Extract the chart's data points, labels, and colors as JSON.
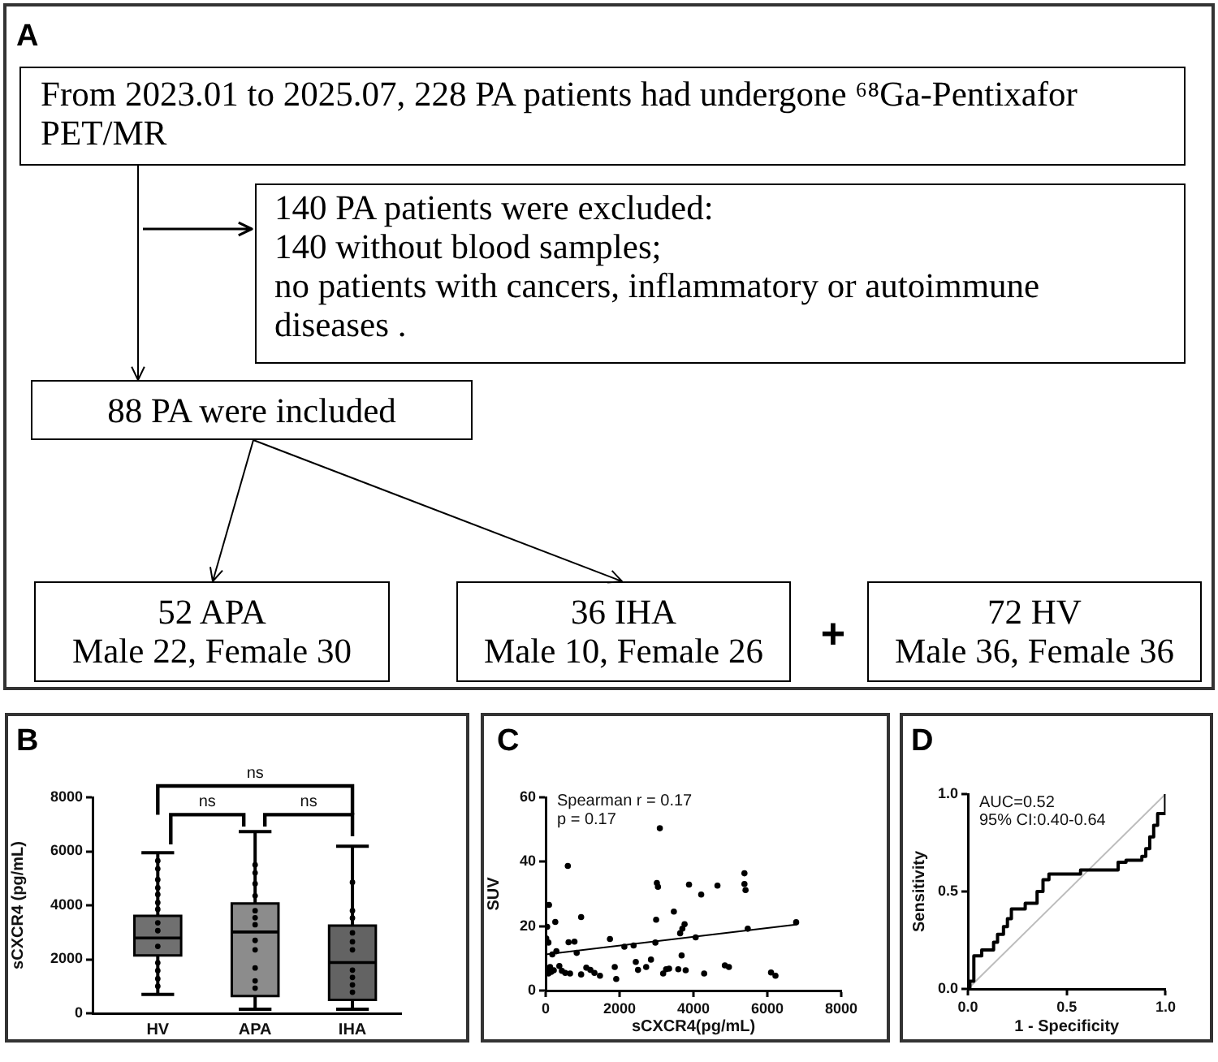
{
  "chart_data": [
    {
      "type": "other",
      "title": "A",
      "annotations": [
        "From 2023.01 to 2025.07, 228 PA patients had undergone ⁶⁸Ga-Pentixafor PET/MR",
        "140 PA patients were excluded:\n140 without blood samples;\nno patients with cancers, inflammatory or autoimmune diseases .",
        "88 PA were included",
        "52 APA\nMale 22, Female 30",
        "36 IHA\nMale 10, Female 26",
        "+",
        "72 HV\nMale 36, Female 36"
      ]
    },
    {
      "type": "box",
      "title": "B",
      "ylabel": "sCXCR4 (pg/mL)",
      "categories": [
        "HV",
        "APA",
        "IHA"
      ],
      "ylim": [
        0,
        8000
      ],
      "yticks": [
        0,
        2000,
        4000,
        6000,
        8000
      ],
      "annotations": [
        "ns",
        "ns",
        "ns"
      ],
      "series": [
        {
          "type": "box",
          "colors": [
            "#707070",
            "#8c8c8c",
            "#636363"
          ],
          "boxes": [
            {
              "low": 700,
              "q1": 2140,
              "median": 2790,
              "q3": 3610,
              "high": 5950
            },
            {
              "low": 150,
              "q1": 640,
              "median": 3010,
              "q3": 4070,
              "high": 6730
            },
            {
              "low": 150,
              "q1": 500,
              "median": 1880,
              "q3": 3250,
              "high": 6190
            }
          ]
        },
        {
          "type": "scatter",
          "marker": "circle",
          "color": "#000000",
          "x": [
            "HV",
            "HV",
            "HV",
            "HV",
            "HV",
            "HV",
            "HV",
            "HV",
            "HV",
            "HV",
            "HV",
            "HV",
            "HV",
            "HV",
            "APA",
            "APA",
            "APA",
            "APA",
            "APA",
            "APA",
            "APA",
            "APA",
            "APA",
            "APA",
            "APA",
            "APA",
            "IHA",
            "IHA",
            "IHA",
            "IHA",
            "IHA",
            "IHA",
            "IHA",
            "IHA",
            "IHA",
            "IHA"
          ],
          "values": [
            5650,
            5350,
            4950,
            4650,
            4400,
            4100,
            3850,
            3350,
            3060,
            2480,
            1870,
            1580,
            1280,
            1000,
            5500,
            5200,
            4800,
            4350,
            3800,
            3540,
            3280,
            2700,
            2350,
            1680,
            1200,
            930,
            4850,
            3800,
            3530,
            2980,
            2650,
            2350,
            1600,
            1330,
            1050,
            780
          ]
        }
      ]
    },
    {
      "type": "scatter",
      "title": "C",
      "xlabel": "sCXCR4(pg/mL)",
      "ylabel": "SUV",
      "xlim": [
        0,
        8000
      ],
      "xticks": [
        0,
        2000,
        4000,
        6000,
        8000
      ],
      "ylim": [
        0,
        60
      ],
      "yticks": [
        0,
        20,
        40,
        60
      ],
      "annotations": [
        "Spearman r = 0.17",
        "p = 0.17"
      ],
      "series": [
        {
          "type": "scatter",
          "marker": "circle",
          "color": "#000000",
          "x": [
            90,
            40,
            15,
            75,
            180,
            290,
            260,
            40,
            120,
            75,
            150,
            220,
            370,
            440,
            530,
            660,
            620,
            780,
            600,
            840,
            960,
            960,
            1100,
            1210,
            1320,
            1470,
            1740,
            1870,
            1910,
            2130,
            2380,
            2440,
            2500,
            2720,
            2850,
            2970,
            2990,
            3010,
            3040,
            3090,
            3180,
            3260,
            3340,
            3470,
            3680,
            3640,
            3700,
            3760,
            3590,
            3790,
            3880,
            4060,
            4210,
            4290,
            4650,
            4850,
            4960,
            5380,
            5380,
            5410,
            5470,
            6100,
            6220,
            6780
          ],
          "values": [
            26.6,
            19.8,
            16.2,
            14.9,
            11.2,
            12.2,
            21.3,
            6.9,
            7.3,
            5.3,
            5.8,
            6.3,
            7.6,
            6.1,
            5.5,
            5.3,
            15.0,
            15.2,
            38.7,
            11.7,
            22.8,
            5.0,
            7.1,
            6.4,
            5.5,
            4.6,
            16.0,
            7.3,
            3.6,
            13.6,
            14.0,
            8.9,
            6.4,
            7.3,
            9.6,
            14.9,
            22.0,
            33.4,
            32.2,
            50.4,
            5.3,
            6.6,
            6.8,
            24.5,
            10.9,
            17.8,
            19.2,
            20.6,
            6.6,
            6.3,
            32.9,
            16.5,
            29.8,
            5.3,
            32.6,
            7.8,
            7.3,
            36.4,
            33.1,
            31.2,
            19.2,
            5.6,
            4.6,
            21.2
          ]
        },
        {
          "type": "line",
          "color": "#000000",
          "x": [
            0,
            6780
          ],
          "values": [
            11.2,
            20.5
          ]
        }
      ]
    },
    {
      "type": "step",
      "title": "D",
      "xlabel": "1 - Specificity",
      "ylabel": "Sensitivity",
      "xlim": [
        0,
        1
      ],
      "ylim": [
        0,
        1
      ],
      "xticks": [
        {
          "value": 0,
          "label": "0.0"
        },
        {
          "value": 0.5,
          "label": "0.5"
        },
        {
          "value": 1,
          "label": "1.0"
        }
      ],
      "yticks": [
        {
          "value": 0,
          "label": "0.0"
        },
        {
          "value": 0.5,
          "label": "0.5"
        },
        {
          "value": 1,
          "label": "1.0"
        }
      ],
      "annotations": [
        "AUC=0.52",
        "95% CI:0.40-0.64"
      ],
      "series": [
        {
          "color": "#000000",
          "x": [
            0,
            0.01,
            0.03,
            0.07,
            0.13,
            0.15,
            0.18,
            0.2,
            0.22,
            0.29,
            0.35,
            0.38,
            0.41,
            0.57,
            0.76,
            0.8,
            0.88,
            0.9,
            0.92,
            0.94,
            0.96,
            1.0
          ],
          "values": [
            0,
            0.04,
            0.17,
            0.2,
            0.24,
            0.28,
            0.32,
            0.36,
            0.41,
            0.44,
            0.5,
            0.56,
            0.59,
            0.61,
            0.65,
            0.66,
            0.68,
            0.72,
            0.78,
            0.84,
            0.9,
            1.0
          ]
        },
        {
          "type": "line",
          "color": "#bdbdbd",
          "x": [
            0,
            1
          ],
          "values": [
            0,
            1
          ]
        }
      ]
    }
  ]
}
